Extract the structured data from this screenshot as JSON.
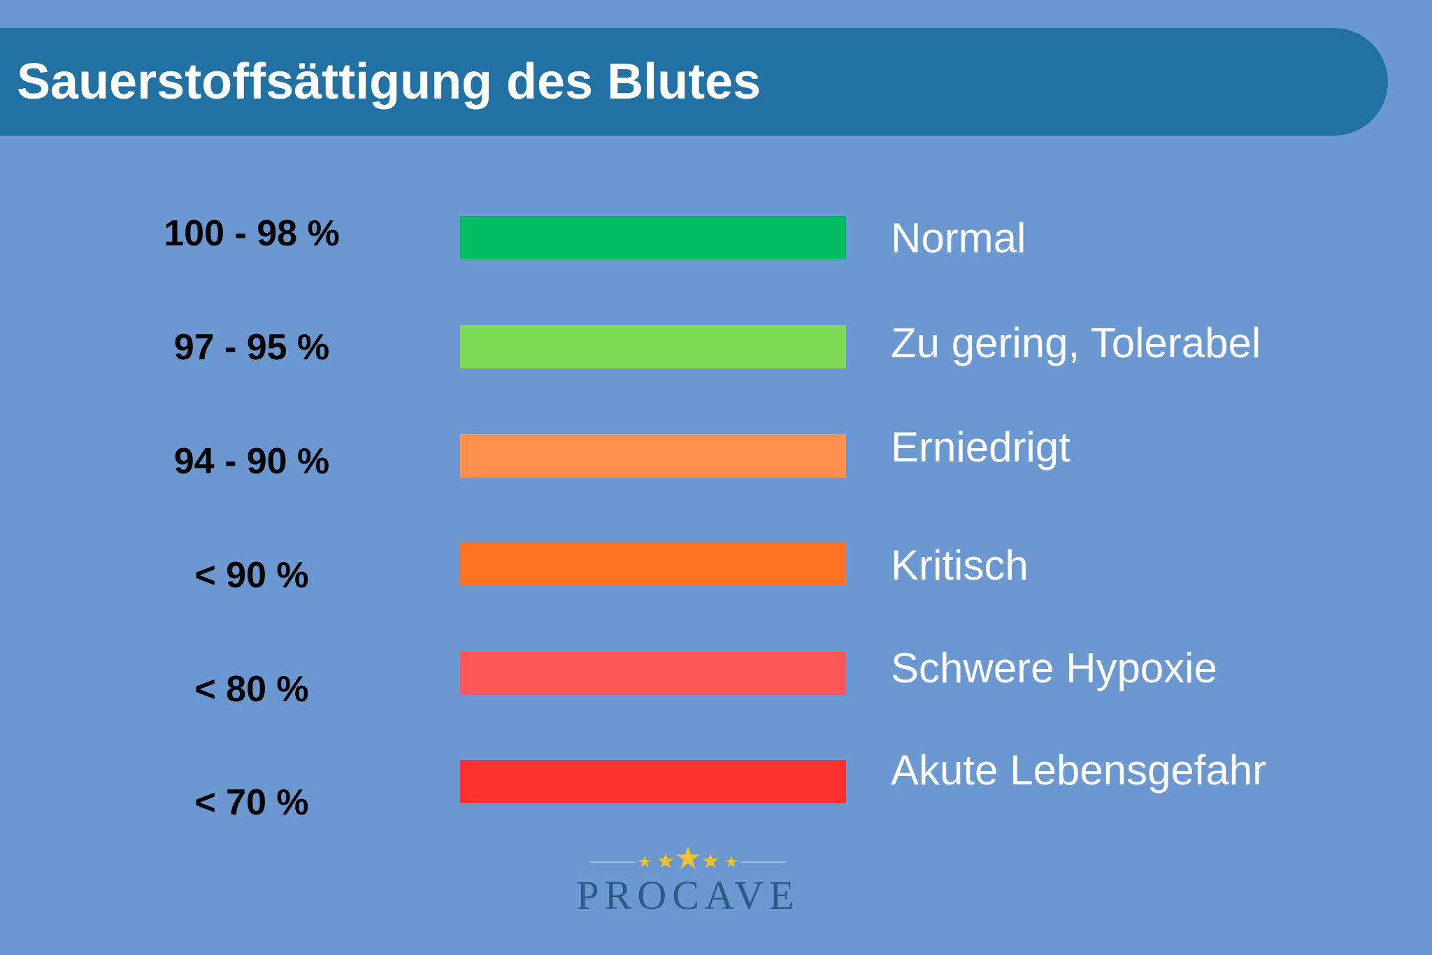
{
  "header": {
    "title": "Sauerstoffsättigung des Blutes"
  },
  "levels": [
    {
      "range": "100 - 98 %",
      "status": "Normal",
      "color": "#00bd63"
    },
    {
      "range": "97 - 95 %",
      "status": "Zu gering, Tolerabel",
      "color": "#7ed957"
    },
    {
      "range": "94 - 90 %",
      "status": "Erniedrigt",
      "color": "#ff914d"
    },
    {
      "range": "< 90 %",
      "status": "Kritisch",
      "color": "#ff7322"
    },
    {
      "range": "< 80 %",
      "status": "Schwere Hypoxie",
      "color": "#ff5757"
    },
    {
      "range": "< 70 %",
      "status": "Akute Lebensgefahr",
      "color": "#ff3131"
    }
  ],
  "logo": {
    "text": "PROCAVE",
    "star_count": 5,
    "icon": "star-icon"
  },
  "colors": {
    "background": "#6b98d1",
    "header": "#2271a5",
    "logo_text": "#2a5d86",
    "star": "#f2c230"
  }
}
